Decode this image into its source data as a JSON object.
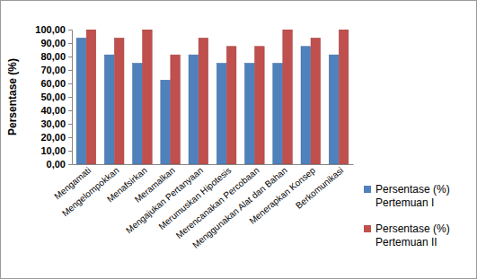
{
  "chart_data": {
    "type": "bar",
    "y_label": "Persentase (%)",
    "categories": [
      "Mengamati",
      "Mengelompokkan",
      "Menafsirkan",
      "Meramalkan",
      "Mengajukan Pertanyaan",
      "Merumuskan Hipotesis",
      "Merencanakan Percobaan",
      "Menggunakan Alat dan Bahan",
      "Menerapkan Konsep",
      "Berkomunikasi"
    ],
    "series": [
      {
        "name": "Persentase (%) Pertemuan I",
        "color": "#4f81bd",
        "values": [
          93.75,
          81.25,
          75,
          62.5,
          81.25,
          75,
          75,
          75,
          87.5,
          81.25
        ]
      },
      {
        "name": "Persentase (%) Pertemuan II",
        "color": "#c0504d",
        "values": [
          100,
          93.75,
          100,
          81.25,
          93.75,
          87.5,
          87.5,
          100,
          93.75,
          100
        ]
      }
    ],
    "ylim": [
      0,
      100
    ],
    "yticks": [
      {
        "value": 0,
        "label": "0,00"
      },
      {
        "value": 10,
        "label": "10,00"
      },
      {
        "value": 20,
        "label": "20,00"
      },
      {
        "value": 30,
        "label": "30,00"
      },
      {
        "value": 40,
        "label": "40,00"
      },
      {
        "value": 50,
        "label": "50,00"
      },
      {
        "value": 60,
        "label": "60,00"
      },
      {
        "value": 70,
        "label": "70,00"
      },
      {
        "value": 80,
        "label": "80,00"
      },
      {
        "value": 90,
        "label": "90,00"
      },
      {
        "value": 100,
        "label": "100,00"
      }
    ],
    "grid": false,
    "legend": "right"
  }
}
